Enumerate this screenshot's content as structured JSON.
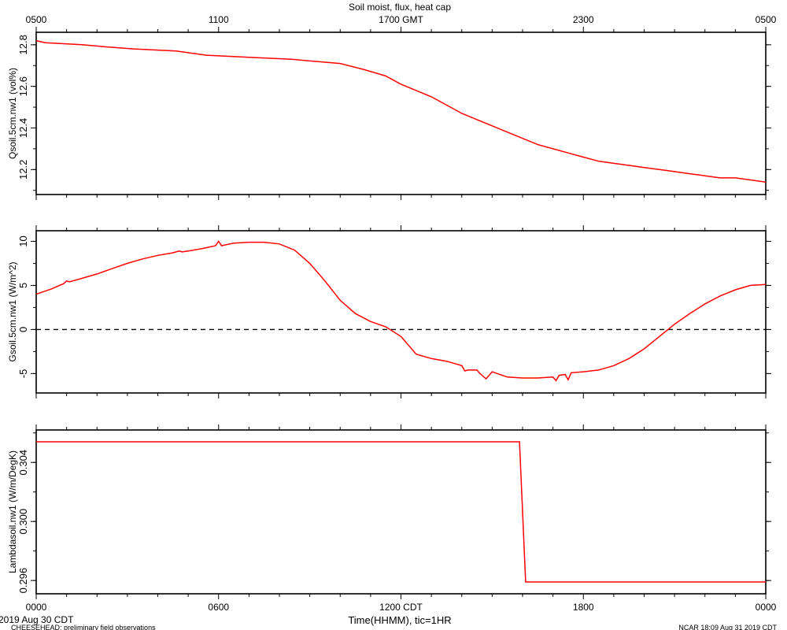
{
  "title": "Soil moist, flux, heat cap",
  "gmt_ticks": [
    "0500",
    "1100",
    "1700 GMT",
    "2300",
    "0500"
  ],
  "cdt_ticks": [
    "0000",
    "0600",
    "1200 CDT",
    "1800",
    "0000"
  ],
  "xlabel": "Time(HHMM), tic=1HR",
  "date_label": "2019 Aug 30 CDT",
  "footer_left": "CHEESEHEAD: preliminary field observations",
  "footer_right": "NCAR 18:09 Aug 31 2019 CDT",
  "colors": {
    "line": "#ff0000",
    "axis": "#000000",
    "zero_line": "#000000"
  },
  "chart_data": [
    {
      "type": "line",
      "ylabel": "Qsoil.5cm.nw1 (vol%)",
      "xlim": [
        0,
        24
      ],
      "ylim": [
        12.08,
        12.86
      ],
      "yticks": [
        "12.2",
        "12.4",
        "12.6",
        "12.8"
      ],
      "series": [
        {
          "x": [
            0,
            0.3,
            1.5,
            2.3,
            3.2,
            4.6,
            5.6,
            7.0,
            8.4,
            9.2,
            10.0,
            10.8,
            11.5,
            12.0,
            12.5,
            13.0,
            13.5,
            14.0,
            14.5,
            15.0,
            15.5,
            16.0,
            16.5,
            17.0,
            17.5,
            18.0,
            18.5,
            19.0,
            19.5,
            20.0,
            20.5,
            21.0,
            21.5,
            22.0,
            22.5,
            23.0,
            23.5,
            24.0
          ],
          "y": [
            12.82,
            12.81,
            12.8,
            12.79,
            12.78,
            12.77,
            12.75,
            12.74,
            12.73,
            12.72,
            12.71,
            12.68,
            12.65,
            12.61,
            12.58,
            12.55,
            12.51,
            12.47,
            12.44,
            12.41,
            12.38,
            12.35,
            12.32,
            12.3,
            12.28,
            12.26,
            12.24,
            12.23,
            12.22,
            12.21,
            12.2,
            12.19,
            12.18,
            12.17,
            12.16,
            12.16,
            12.15,
            12.14
          ]
        }
      ]
    },
    {
      "type": "line",
      "ylabel": "Gsoil.5cm.nw1 (W/m^2)",
      "xlim": [
        0,
        24
      ],
      "ylim": [
        -7.2,
        11.2
      ],
      "yticks": [
        "-5",
        "0",
        "5",
        "10"
      ],
      "zero_line": 0,
      "series": [
        {
          "x": [
            0,
            0.5,
            0.9,
            1.0,
            1.1,
            1.5,
            2.0,
            2.5,
            3.0,
            3.5,
            4.0,
            4.5,
            4.7,
            4.8,
            5.0,
            5.5,
            5.9,
            6.0,
            6.1,
            6.5,
            7.0,
            7.5,
            8.0,
            8.5,
            9.0,
            9.5,
            10.0,
            10.5,
            11.0,
            11.5,
            12.0,
            12.5,
            13.0,
            13.5,
            14.0,
            14.1,
            14.2,
            14.5,
            14.6,
            14.8,
            15.0,
            15.5,
            16.0,
            16.5,
            17.0,
            17.1,
            17.2,
            17.4,
            17.5,
            17.6,
            18.0,
            18.5,
            19.0,
            19.5,
            20.0,
            20.5,
            21.0,
            21.5,
            22.0,
            22.5,
            23.0,
            23.5,
            24.0
          ],
          "y": [
            4.0,
            4.6,
            5.2,
            5.5,
            5.4,
            5.8,
            6.3,
            6.9,
            7.5,
            8.0,
            8.4,
            8.7,
            8.9,
            8.8,
            8.9,
            9.2,
            9.5,
            10.0,
            9.5,
            9.8,
            9.9,
            9.9,
            9.7,
            9.0,
            7.5,
            5.5,
            3.3,
            1.8,
            0.9,
            0.3,
            -0.8,
            -2.8,
            -3.3,
            -3.6,
            -4.1,
            -4.7,
            -4.6,
            -4.6,
            -5.0,
            -5.6,
            -4.8,
            -5.4,
            -5.5,
            -5.5,
            -5.4,
            -5.8,
            -5.2,
            -5.1,
            -5.7,
            -4.9,
            -4.8,
            -4.6,
            -4.1,
            -3.3,
            -2.2,
            -0.8,
            0.6,
            1.8,
            2.9,
            3.8,
            4.5,
            5.0,
            5.1
          ]
        }
      ]
    },
    {
      "type": "line",
      "ylabel": "Lambdasoil.nw1 (W/m/DegK)",
      "xlim": [
        0,
        24
      ],
      "ylim": [
        0.2951,
        0.3062
      ],
      "yticks": [
        "0.296",
        "0.300",
        "0.304"
      ],
      "series": [
        {
          "x": [
            0,
            15.9,
            16.1,
            24.0
          ],
          "y": [
            0.3054,
            0.3054,
            0.2959,
            0.2959
          ]
        }
      ]
    }
  ]
}
